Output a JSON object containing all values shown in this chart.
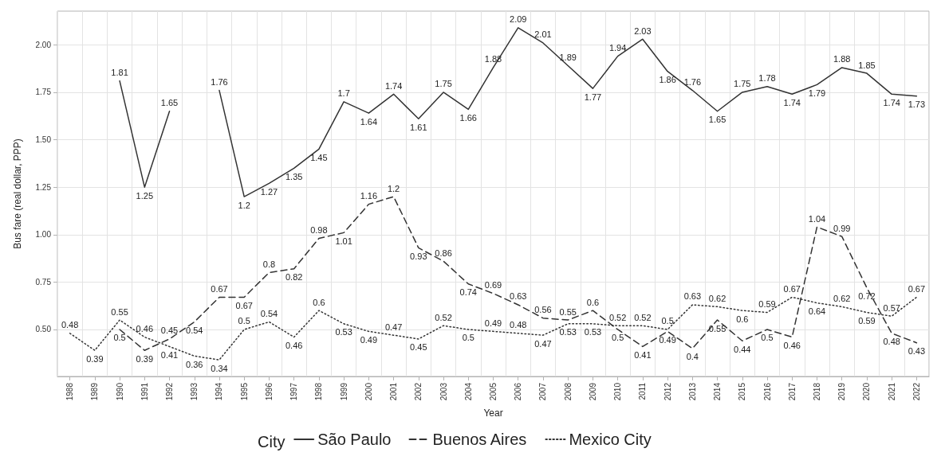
{
  "chart_data": {
    "type": "line",
    "xlabel": "Year",
    "ylabel": "Bus fare (real dollar, PPP)",
    "legend_title": "City",
    "categories": [
      "1988",
      "1989",
      "1990",
      "1991",
      "1992",
      "1993",
      "1994",
      "1995",
      "1996",
      "1997",
      "1998",
      "1999",
      "2000",
      "2001",
      "2002",
      "2003",
      "2004",
      "2005",
      "2006",
      "2007",
      "2008",
      "2009",
      "2010",
      "2011",
      "2012",
      "2013",
      "2014",
      "2015",
      "2016",
      "2017",
      "2018",
      "2019",
      "2020",
      "2021",
      "2022"
    ],
    "series": [
      {
        "name": "São Paulo",
        "color": "#333333",
        "line_style": "solid",
        "values": [
          null,
          null,
          1.81,
          1.25,
          1.65,
          null,
          1.76,
          1.2,
          1.27,
          1.35,
          1.45,
          1.7,
          1.64,
          1.74,
          1.61,
          1.75,
          1.66,
          1.88,
          2.09,
          2.01,
          1.89,
          1.77,
          1.94,
          2.03,
          1.86,
          1.76,
          1.65,
          1.75,
          1.78,
          1.74,
          1.79,
          1.88,
          1.85,
          1.74,
          1.73
        ]
      },
      {
        "name": "Buenos Aires",
        "color": "#333333",
        "line_style": "dashed",
        "values": [
          null,
          null,
          0.5,
          0.39,
          0.45,
          0.54,
          0.67,
          0.67,
          0.8,
          0.82,
          0.98,
          1.01,
          1.16,
          1.2,
          0.93,
          0.86,
          0.74,
          0.69,
          0.63,
          0.56,
          0.55,
          0.6,
          0.5,
          0.41,
          0.49,
          0.4,
          0.55,
          0.44,
          0.5,
          0.46,
          1.04,
          0.99,
          0.72,
          0.48,
          0.43
        ]
      },
      {
        "name": "Mexico City",
        "color": "#333333",
        "line_style": "dotted",
        "values": [
          0.48,
          0.39,
          0.55,
          0.46,
          0.41,
          0.36,
          0.34,
          0.5,
          0.54,
          0.46,
          0.6,
          0.53,
          0.49,
          0.47,
          0.45,
          0.52,
          0.5,
          0.49,
          0.48,
          0.47,
          0.53,
          0.53,
          0.52,
          0.52,
          0.5,
          0.63,
          0.62,
          0.6,
          0.59,
          0.67,
          0.64,
          0.62,
          0.59,
          0.57,
          0.67
        ]
      }
    ],
    "ylim": [
      0.2525,
      2.1775
    ],
    "yticks": [
      {
        "value": 0.5,
        "label": "0.50"
      },
      {
        "value": 0.75,
        "label": "0.75"
      },
      {
        "value": 1.0,
        "label": "1.00"
      },
      {
        "value": 1.25,
        "label": "1.25"
      },
      {
        "value": 1.5,
        "label": "1.50"
      },
      {
        "value": 1.75,
        "label": "1.75"
      },
      {
        "value": 2.0,
        "label": "2.00"
      }
    ],
    "grid": true,
    "legend": "bottom",
    "marker": "none",
    "data_labels": true
  }
}
